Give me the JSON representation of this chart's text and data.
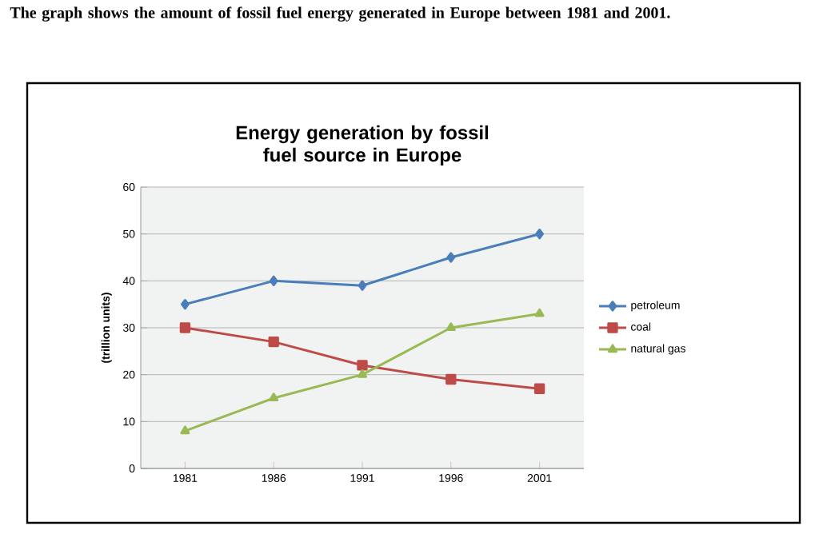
{
  "chart_data": {
    "type": "line",
    "title": "Energy generation by fossil fuel source in Europe",
    "annotations": [
      "The graph shows the amount of fossil fuel energy generated in Europe between 1981 and 2001."
    ],
    "ylabel": "(trillion units)",
    "categories": [
      "1981",
      "1986",
      "1991",
      "1996",
      "2001"
    ],
    "series": [
      {
        "name": "petroleum",
        "color": "#4a7ebb",
        "marker": "diamond",
        "values": [
          35,
          40,
          39,
          45,
          50
        ]
      },
      {
        "name": "coal",
        "color": "#be4b48",
        "marker": "square",
        "values": [
          30,
          27,
          22,
          19,
          17
        ]
      },
      {
        "name": "natural gas",
        "color": "#98b954",
        "marker": "triangle",
        "values": [
          8,
          15,
          20,
          30,
          33
        ]
      }
    ],
    "ylim": [
      0,
      60
    ],
    "yticks": [
      0,
      10,
      20,
      30,
      40,
      50,
      60
    ],
    "grid": "y",
    "legend": "right",
    "line_style": "solid"
  }
}
